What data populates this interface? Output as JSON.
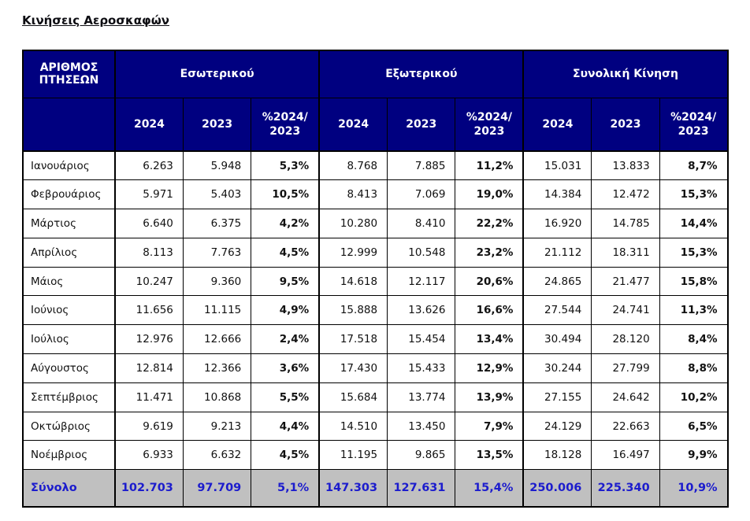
{
  "page": {
    "title": "Κινήσεις Αεροσκαφών"
  },
  "table": {
    "corner_header": "ΑΡΙΘΜΟΣ\nΠΤΗΣΕΩΝ",
    "groups": [
      {
        "label": "Εσωτερικού"
      },
      {
        "label": "Εξωτερικού"
      },
      {
        "label": "Συνολική Κίνηση"
      }
    ],
    "sub_headers": [
      "2024",
      "2023",
      "%2024/\n2023"
    ],
    "rows": [
      {
        "month": "Ιανουάριος",
        "values": [
          "6.263",
          "5.948",
          "5,3%",
          "8.768",
          "7.885",
          "11,2%",
          "15.031",
          "13.833",
          "8,7%"
        ]
      },
      {
        "month": "Φεβρουάριος",
        "values": [
          "5.971",
          "5.403",
          "10,5%",
          "8.413",
          "7.069",
          "19,0%",
          "14.384",
          "12.472",
          "15,3%"
        ]
      },
      {
        "month": "Μάρτιος",
        "values": [
          "6.640",
          "6.375",
          "4,2%",
          "10.280",
          "8.410",
          "22,2%",
          "16.920",
          "14.785",
          "14,4%"
        ]
      },
      {
        "month": "Απρίλιος",
        "values": [
          "8.113",
          "7.763",
          "4,5%",
          "12.999",
          "10.548",
          "23,2%",
          "21.112",
          "18.311",
          "15,3%"
        ]
      },
      {
        "month": "Μάιος",
        "values": [
          "10.247",
          "9.360",
          "9,5%",
          "14.618",
          "12.117",
          "20,6%",
          "24.865",
          "21.477",
          "15,8%"
        ]
      },
      {
        "month": "Ιούνιος",
        "values": [
          "11.656",
          "11.115",
          "4,9%",
          "15.888",
          "13.626",
          "16,6%",
          "27.544",
          "24.741",
          "11,3%"
        ]
      },
      {
        "month": "Ιούλιος",
        "values": [
          "12.976",
          "12.666",
          "2,4%",
          "17.518",
          "15.454",
          "13,4%",
          "30.494",
          "28.120",
          "8,4%"
        ]
      },
      {
        "month": "Αύγουστος",
        "values": [
          "12.814",
          "12.366",
          "3,6%",
          "17.430",
          "15.433",
          "12,9%",
          "30.244",
          "27.799",
          "8,8%"
        ]
      },
      {
        "month": "Σεπτέμβριος",
        "values": [
          "11.471",
          "10.868",
          "5,5%",
          "15.684",
          "13.774",
          "13,9%",
          "27.155",
          "24.642",
          "10,2%"
        ]
      },
      {
        "month": "Οκτώβριος",
        "values": [
          "9.619",
          "9.213",
          "4,4%",
          "14.510",
          "13.450",
          "7,9%",
          "24.129",
          "22.663",
          "6,5%"
        ]
      },
      {
        "month": "Νοέμβριος",
        "values": [
          "6.933",
          "6.632",
          "4,5%",
          "11.195",
          "9.865",
          "13,5%",
          "18.128",
          "16.497",
          "9,9%"
        ]
      }
    ],
    "total_row": {
      "label": "Σύνολο",
      "values": [
        "102.703",
        "97.709",
        "5,1%",
        "147.303",
        "127.631",
        "15,4%",
        "250.006",
        "225.340",
        "10,9%"
      ]
    }
  },
  "colors": {
    "header_bg": "#000080",
    "header_text": "#ffffff",
    "total_bg": "#c0c0c0",
    "total_text": "#1c1ccd",
    "border": "#000000"
  }
}
